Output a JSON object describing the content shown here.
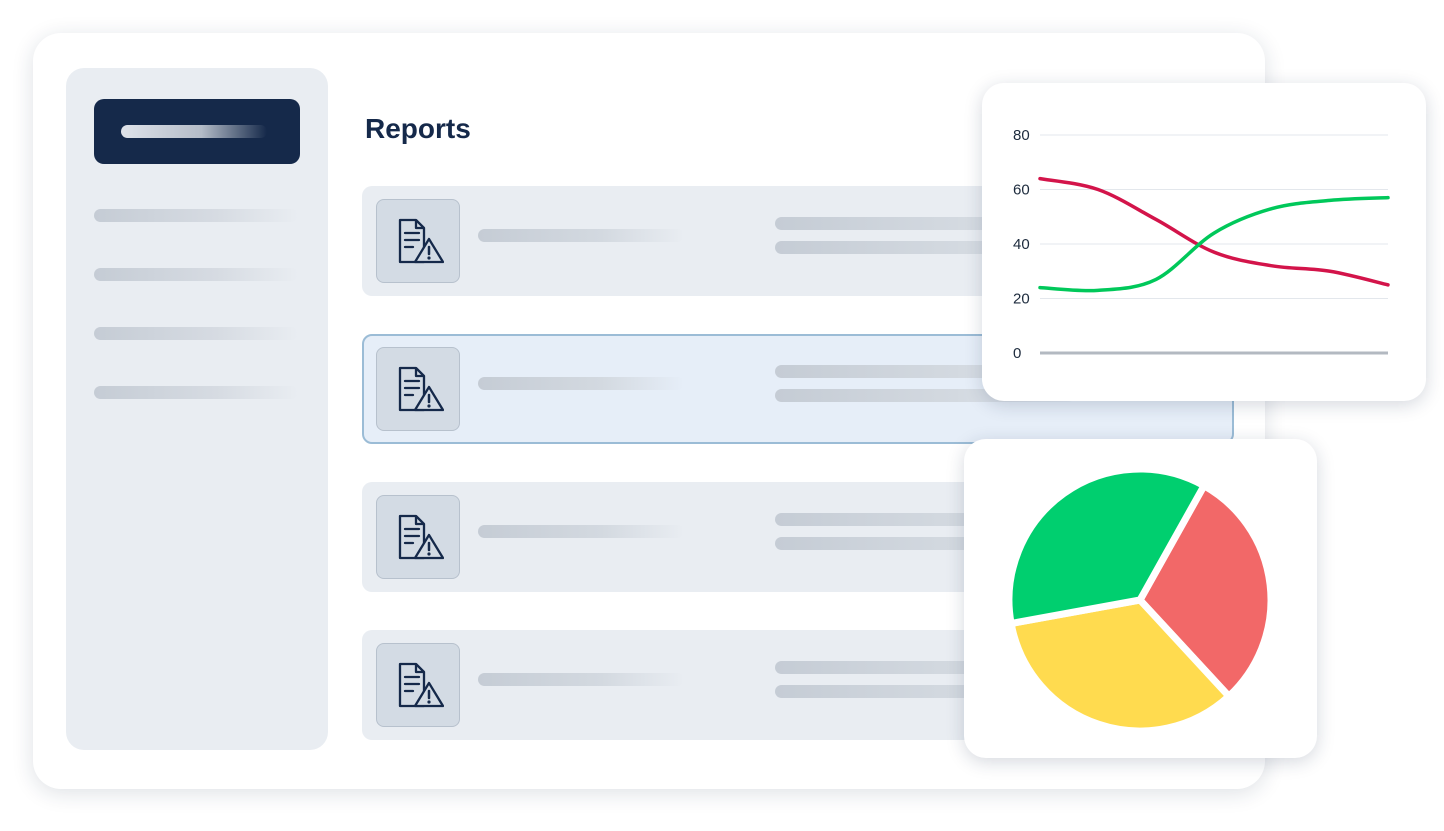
{
  "main": {
    "title": "Reports",
    "rows": [
      {
        "icon": "report-warning-icon",
        "selected": false
      },
      {
        "icon": "report-warning-icon",
        "selected": true
      },
      {
        "icon": "report-warning-icon",
        "selected": false
      },
      {
        "icon": "report-warning-icon",
        "selected": false
      }
    ]
  },
  "chart_data": [
    {
      "type": "line",
      "title": "",
      "xlabel": "",
      "ylabel": "",
      "x": [
        0,
        1,
        2,
        3,
        4,
        5,
        6
      ],
      "ylim": [
        0,
        80
      ],
      "yticks": [
        "0",
        "20",
        "40",
        "60",
        "80"
      ],
      "grid": true,
      "series": [
        {
          "color": "#d3144a",
          "values": [
            64,
            60,
            49,
            37,
            32,
            30,
            25
          ]
        },
        {
          "color": "#00c85a",
          "values": [
            24,
            23,
            27,
            44,
            53,
            56,
            57
          ]
        }
      ]
    },
    {
      "type": "pie",
      "title": "",
      "slices": [
        {
          "color": "#f26868",
          "value": 30
        },
        {
          "color": "#ffdb4f",
          "value": 34
        },
        {
          "color": "#00cf6f",
          "value": 36
        }
      ]
    }
  ]
}
